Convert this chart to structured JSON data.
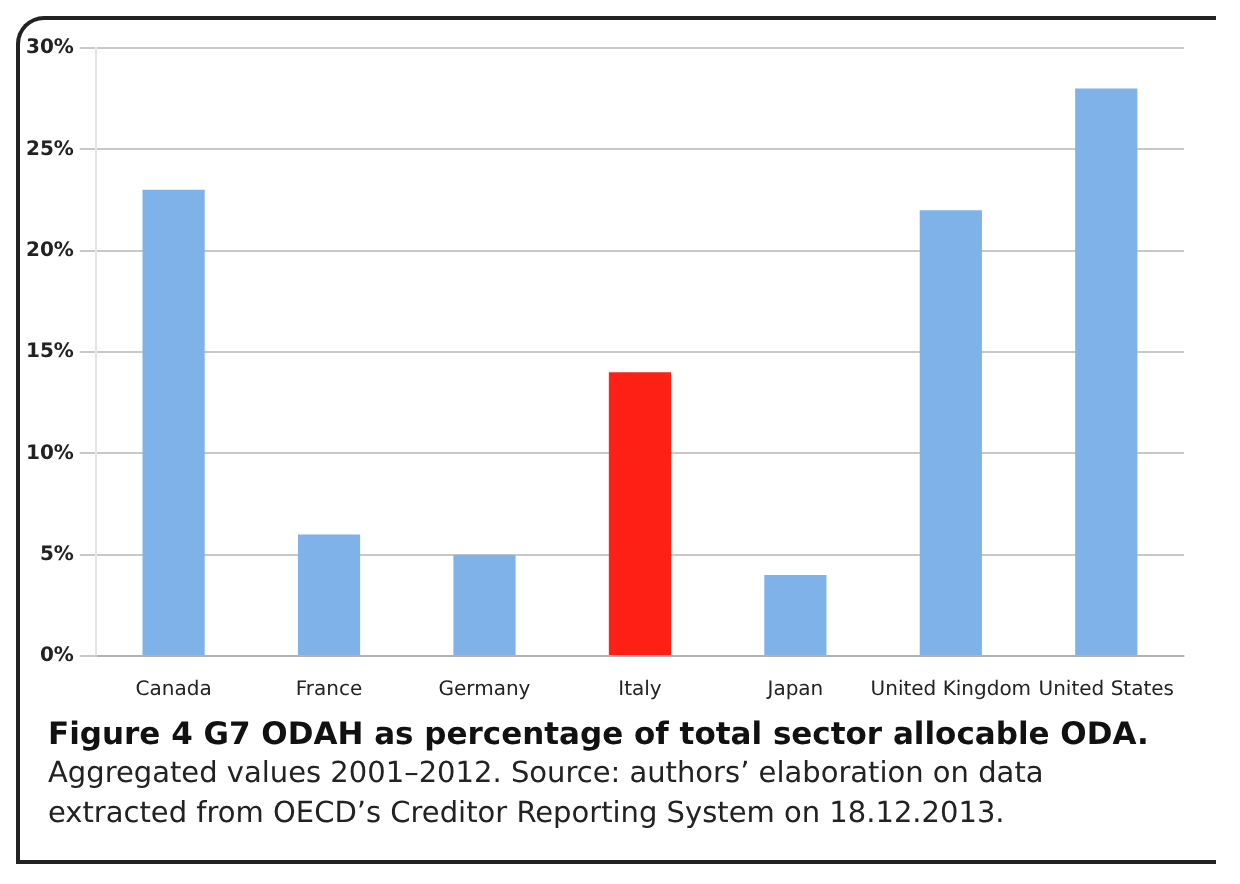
{
  "chart_data": {
    "type": "bar",
    "title": "Figure 4 G7 ODAH as percentage of total sector allocable ODA.",
    "annotations": [
      "Aggregated values 2001–2012. Source: authors’ elaboration on data extracted from OECD’s Creditor Reporting System on 18.12.2013."
    ],
    "categories": [
      "Canada",
      "France",
      "Germany",
      "Italy",
      "Japan",
      "United Kingdom",
      "United States"
    ],
    "values": [
      23,
      6,
      5,
      14,
      4,
      22,
      28
    ],
    "colors": [
      "#7eb2e8",
      "#7eb2e8",
      "#7eb2e8",
      "#ff2015",
      "#7eb2e8",
      "#7eb2e8",
      "#7eb2e8"
    ],
    "ylim": [
      0,
      30
    ],
    "yticks": [
      {
        "value": 0,
        "label": "0%"
      },
      {
        "value": 5,
        "label": "5%"
      },
      {
        "value": 10,
        "label": "10%"
      },
      {
        "value": 15,
        "label": "15%"
      },
      {
        "value": 20,
        "label": "20%"
      },
      {
        "value": 25,
        "label": "25%"
      },
      {
        "value": 30,
        "label": "30%"
      }
    ],
    "grid": "y",
    "legend": false
  }
}
